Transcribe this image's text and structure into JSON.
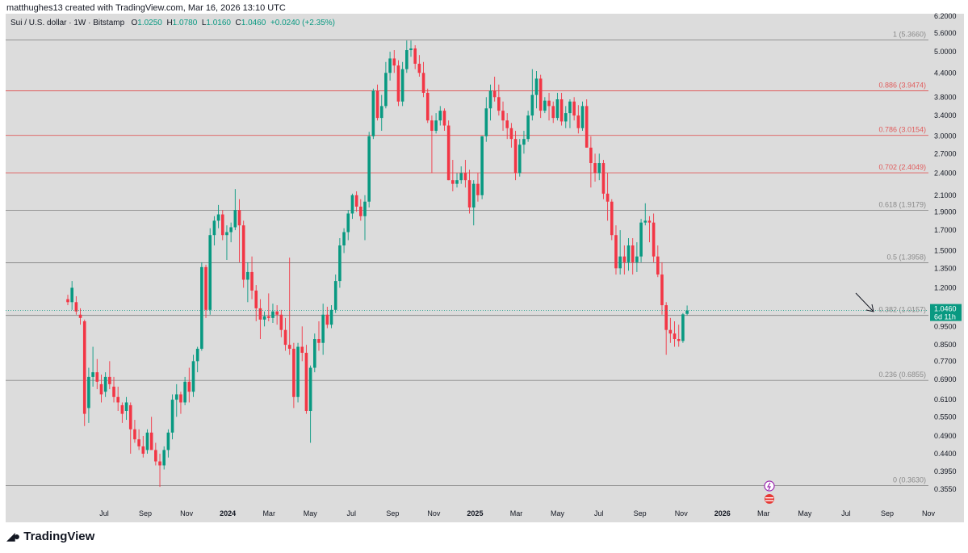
{
  "header": {
    "credit": "matthughes13 created with TradingView.com, Mar 16, 2026 13:10 UTC"
  },
  "legend": {
    "symbol": "Sui / U.S. dollar · 1W · Bitstamp",
    "open_label": "O",
    "open": "1.0250",
    "high_label": "H",
    "high": "1.0780",
    "low_label": "L",
    "low": "1.0160",
    "close_label": "C",
    "close": "1.0460",
    "change": "+0.0240 (+2.35%)"
  },
  "footer": {
    "brand": "TradingView"
  },
  "colors": {
    "up": "#089981",
    "down": "#f23645",
    "background": "#dcdcdc",
    "fib_red": "#e05c5c",
    "fib_gray": "#8a8a8a"
  },
  "chart_data": {
    "type": "candlestick",
    "y_scale": "log",
    "price_ticks": [
      "6.2000",
      "5.6000",
      "5.0000",
      "4.4000",
      "3.8000",
      "3.4000",
      "3.0000",
      "2.7000",
      "2.4000",
      "2.1000",
      "1.9000",
      "1.7000",
      "1.5000",
      "1.3500",
      "1.2000",
      "1.0460",
      "0.9500",
      "0.8500",
      "0.7700",
      "0.6900",
      "0.6100",
      "0.5500",
      "0.4900",
      "0.4400",
      "0.3950",
      "0.3550"
    ],
    "time_ticks": [
      {
        "label": "Jul",
        "bold": false
      },
      {
        "label": "Sep",
        "bold": false
      },
      {
        "label": "Nov",
        "bold": false
      },
      {
        "label": "2024",
        "bold": true
      },
      {
        "label": "Mar",
        "bold": false
      },
      {
        "label": "May",
        "bold": false
      },
      {
        "label": "Jul",
        "bold": false
      },
      {
        "label": "Sep",
        "bold": false
      },
      {
        "label": "Nov",
        "bold": false
      },
      {
        "label": "2025",
        "bold": true
      },
      {
        "label": "Mar",
        "bold": false
      },
      {
        "label": "May",
        "bold": false
      },
      {
        "label": "Jul",
        "bold": false
      },
      {
        "label": "Sep",
        "bold": false
      },
      {
        "label": "Nov",
        "bold": false
      },
      {
        "label": "2026",
        "bold": true
      },
      {
        "label": "Mar",
        "bold": false
      },
      {
        "label": "May",
        "bold": false
      },
      {
        "label": "Jul",
        "bold": false
      },
      {
        "label": "Sep",
        "bold": false
      },
      {
        "label": "Nov",
        "bold": false
      }
    ],
    "fib_levels": [
      {
        "label": "1 (5.3660)",
        "price": 5.366,
        "color": "gray"
      },
      {
        "label": "0.886 (3.9474)",
        "price": 3.9474,
        "color": "red"
      },
      {
        "label": "0.786 (3.0154)",
        "price": 3.0154,
        "color": "red"
      },
      {
        "label": "0.702 (2.4049)",
        "price": 2.4049,
        "color": "red"
      },
      {
        "label": "0.618 (1.9179)",
        "price": 1.9179,
        "color": "gray"
      },
      {
        "label": "0.5 (1.3958)",
        "price": 1.3958,
        "color": "gray"
      },
      {
        "label": "0.382 (1.0157)",
        "price": 1.0157,
        "color": "gray"
      },
      {
        "label": "0.236 (0.6855)",
        "price": 0.6855,
        "color": "gray"
      },
      {
        "label": "0 (0.3630)",
        "price": 0.363,
        "color": "gray"
      }
    ],
    "last_price": {
      "price": "1.0460",
      "countdown": "6d 11h"
    },
    "candles": [
      [
        1.12,
        1.15,
        1.08,
        1.1
      ],
      [
        1.1,
        1.25,
        1.05,
        1.2
      ],
      [
        1.1,
        1.14,
        1.02,
        1.04
      ],
      [
        1.02,
        1.06,
        0.96,
        1.0
      ],
      [
        0.98,
        0.99,
        0.52,
        0.56
      ],
      [
        0.58,
        0.74,
        0.53,
        0.7
      ],
      [
        0.7,
        0.84,
        0.66,
        0.72
      ],
      [
        0.72,
        0.78,
        0.65,
        0.68
      ],
      [
        0.67,
        0.71,
        0.6,
        0.63
      ],
      [
        0.64,
        0.72,
        0.62,
        0.7
      ],
      [
        0.7,
        0.77,
        0.65,
        0.67
      ],
      [
        0.66,
        0.7,
        0.6,
        0.62
      ],
      [
        0.62,
        0.66,
        0.57,
        0.6
      ],
      [
        0.59,
        0.6,
        0.53,
        0.56
      ],
      [
        0.57,
        0.62,
        0.54,
        0.6
      ],
      [
        0.59,
        0.6,
        0.44,
        0.51
      ],
      [
        0.51,
        0.54,
        0.47,
        0.48
      ],
      [
        0.48,
        0.51,
        0.45,
        0.46
      ],
      [
        0.46,
        0.49,
        0.43,
        0.44
      ],
      [
        0.45,
        0.51,
        0.44,
        0.5
      ],
      [
        0.5,
        0.55,
        0.47,
        0.45
      ],
      [
        0.45,
        0.47,
        0.41,
        0.42
      ],
      [
        0.42,
        0.44,
        0.36,
        0.41
      ],
      [
        0.41,
        0.46,
        0.4,
        0.45
      ],
      [
        0.45,
        0.51,
        0.43,
        0.5
      ],
      [
        0.5,
        0.63,
        0.48,
        0.61
      ],
      [
        0.61,
        0.67,
        0.55,
        0.63
      ],
      [
        0.63,
        0.64,
        0.56,
        0.6
      ],
      [
        0.6,
        0.7,
        0.59,
        0.68
      ],
      [
        0.68,
        0.74,
        0.6,
        0.64
      ],
      [
        0.64,
        0.8,
        0.62,
        0.77
      ],
      [
        0.77,
        0.84,
        0.72,
        0.83
      ],
      [
        0.83,
        1.4,
        0.82,
        1.36
      ],
      [
        1.36,
        1.38,
        1.0,
        1.05
      ],
      [
        1.05,
        1.72,
        1.02,
        1.65
      ],
      [
        1.65,
        1.85,
        1.55,
        1.8
      ],
      [
        1.8,
        1.98,
        1.72,
        1.87
      ],
      [
        1.87,
        1.92,
        1.6,
        1.65
      ],
      [
        1.65,
        1.75,
        1.42,
        1.68
      ],
      [
        1.68,
        1.78,
        1.58,
        1.73
      ],
      [
        1.73,
        2.18,
        1.7,
        1.92
      ],
      [
        1.92,
        2.05,
        1.4,
        1.75
      ],
      [
        1.75,
        1.8,
        1.2,
        1.26
      ],
      [
        1.26,
        1.4,
        1.1,
        1.32
      ],
      [
        1.32,
        1.45,
        1.12,
        1.18
      ],
      [
        1.18,
        1.22,
        0.98,
        1.06
      ],
      [
        1.06,
        1.12,
        0.88,
        0.99
      ],
      [
        0.99,
        1.04,
        0.95,
        1.01
      ],
      [
        1.01,
        1.16,
        0.98,
        1.0
      ],
      [
        1.0,
        1.09,
        0.97,
        1.04
      ],
      [
        1.04,
        1.08,
        0.96,
        1.02
      ],
      [
        1.02,
        1.05,
        0.89,
        0.93
      ],
      [
        0.93,
        1.0,
        0.82,
        0.85
      ],
      [
        0.85,
        1.44,
        0.8,
        0.83
      ],
      [
        0.83,
        0.86,
        0.58,
        0.62
      ],
      [
        0.62,
        0.86,
        0.6,
        0.84
      ],
      [
        0.84,
        0.95,
        0.77,
        0.81
      ],
      [
        0.81,
        0.85,
        0.56,
        0.57
      ],
      [
        0.57,
        0.75,
        0.47,
        0.74
      ],
      [
        0.74,
        0.91,
        0.72,
        0.88
      ],
      [
        0.88,
        0.98,
        0.82,
        0.86
      ],
      [
        0.86,
        1.09,
        0.8,
        1.02
      ],
      [
        1.02,
        1.07,
        0.94,
        0.96
      ],
      [
        0.96,
        1.08,
        0.94,
        1.05
      ],
      [
        1.05,
        1.3,
        1.03,
        1.25
      ],
      [
        1.25,
        1.62,
        1.2,
        1.55
      ],
      [
        1.55,
        1.72,
        1.48,
        1.68
      ],
      [
        1.68,
        1.92,
        1.6,
        1.88
      ],
      [
        1.88,
        2.12,
        1.82,
        2.1
      ],
      [
        2.1,
        2.15,
        1.9,
        1.96
      ],
      [
        1.96,
        2.05,
        1.8,
        1.85
      ],
      [
        1.85,
        2.1,
        1.6,
        2.02
      ],
      [
        2.02,
        3.08,
        1.95,
        3.0
      ],
      [
        3.0,
        4.0,
        2.95,
        3.95
      ],
      [
        3.95,
        4.1,
        3.3,
        3.35
      ],
      [
        3.35,
        3.85,
        3.1,
        3.6
      ],
      [
        3.6,
        4.7,
        3.55,
        4.4
      ],
      [
        4.4,
        5.0,
        4.2,
        4.8
      ],
      [
        4.8,
        5.05,
        4.4,
        4.6
      ],
      [
        4.6,
        4.75,
        3.6,
        3.7
      ],
      [
        3.7,
        4.7,
        3.6,
        4.5
      ],
      [
        4.5,
        5.35,
        4.4,
        5.05
      ],
      [
        5.05,
        5.35,
        4.85,
        5.1
      ],
      [
        5.1,
        5.2,
        4.5,
        4.65
      ],
      [
        4.65,
        4.9,
        4.3,
        4.4
      ],
      [
        4.4,
        4.7,
        3.8,
        3.9
      ],
      [
        3.9,
        4.0,
        3.25,
        3.3
      ],
      [
        3.3,
        3.4,
        2.4,
        3.1
      ],
      [
        3.1,
        3.45,
        3.05,
        3.3
      ],
      [
        3.3,
        3.6,
        3.2,
        3.5
      ],
      [
        3.5,
        3.55,
        3.1,
        3.2
      ],
      [
        3.2,
        3.3,
        2.3,
        2.3
      ],
      [
        2.3,
        2.6,
        2.15,
        2.25
      ],
      [
        2.25,
        2.4,
        2.2,
        2.3
      ],
      [
        2.3,
        2.5,
        2.25,
        2.4
      ],
      [
        2.4,
        2.6,
        2.2,
        2.3
      ],
      [
        2.3,
        2.45,
        1.88,
        1.95
      ],
      [
        1.95,
        2.3,
        1.75,
        2.25
      ],
      [
        2.25,
        2.4,
        2.02,
        2.1
      ],
      [
        2.1,
        3.0,
        2.05,
        3.0
      ],
      [
        3.0,
        3.8,
        2.9,
        3.55
      ],
      [
        3.55,
        4.1,
        3.3,
        3.95
      ],
      [
        3.95,
        4.3,
        3.7,
        3.8
      ],
      [
        3.8,
        4.1,
        3.4,
        3.5
      ],
      [
        3.5,
        3.7,
        3.1,
        3.3
      ],
      [
        3.3,
        3.45,
        2.95,
        3.15
      ],
      [
        3.15,
        3.25,
        2.8,
        2.95
      ],
      [
        2.95,
        3.1,
        2.3,
        2.4
      ],
      [
        2.4,
        2.95,
        2.35,
        2.85
      ],
      [
        2.85,
        3.1,
        2.7,
        2.95
      ],
      [
        2.95,
        3.5,
        2.9,
        3.4
      ],
      [
        3.4,
        4.5,
        3.3,
        3.85
      ],
      [
        3.85,
        4.45,
        3.55,
        4.25
      ],
      [
        4.25,
        4.35,
        3.35,
        3.5
      ],
      [
        3.5,
        3.8,
        3.45,
        3.72
      ],
      [
        3.72,
        3.9,
        3.3,
        3.6
      ],
      [
        3.6,
        3.7,
        3.25,
        3.35
      ],
      [
        3.35,
        3.9,
        3.3,
        3.75
      ],
      [
        3.75,
        3.9,
        3.2,
        3.28
      ],
      [
        3.28,
        3.6,
        3.15,
        3.45
      ],
      [
        3.45,
        3.75,
        3.15,
        3.7
      ],
      [
        3.7,
        3.8,
        3.3,
        3.4
      ],
      [
        3.4,
        3.62,
        3.05,
        3.15
      ],
      [
        3.15,
        3.7,
        3.1,
        3.6
      ],
      [
        3.6,
        3.75,
        2.8,
        2.8
      ],
      [
        2.8,
        3.0,
        2.2,
        2.55
      ],
      [
        2.55,
        2.7,
        2.28,
        2.4
      ],
      [
        2.4,
        2.7,
        2.3,
        2.55
      ],
      [
        2.55,
        2.6,
        2.05,
        2.12
      ],
      [
        2.12,
        2.4,
        1.8,
        2.02
      ],
      [
        2.02,
        2.05,
        1.6,
        1.65
      ],
      [
        1.65,
        1.75,
        1.3,
        1.35
      ],
      [
        1.35,
        1.7,
        1.3,
        1.45
      ],
      [
        1.45,
        1.55,
        1.3,
        1.4
      ],
      [
        1.4,
        1.62,
        1.33,
        1.55
      ],
      [
        1.55,
        1.62,
        1.3,
        1.4
      ],
      [
        1.4,
        1.58,
        1.32,
        1.45
      ],
      [
        1.45,
        1.82,
        1.4,
        1.78
      ],
      [
        1.78,
        2.0,
        1.75,
        1.8
      ],
      [
        1.8,
        1.85,
        1.58,
        1.78
      ],
      [
        1.78,
        1.88,
        1.4,
        1.45
      ],
      [
        1.45,
        1.55,
        1.28,
        1.3
      ],
      [
        1.3,
        1.4,
        1.02,
        1.08
      ],
      [
        1.08,
        1.1,
        0.8,
        0.93
      ],
      [
        0.93,
        1.0,
        0.86,
        0.91
      ],
      [
        0.91,
        0.98,
        0.84,
        0.88
      ],
      [
        0.88,
        0.96,
        0.84,
        0.87
      ],
      [
        0.87,
        1.03,
        0.86,
        1.022
      ],
      [
        1.025,
        1.078,
        1.016,
        1.046
      ]
    ]
  }
}
